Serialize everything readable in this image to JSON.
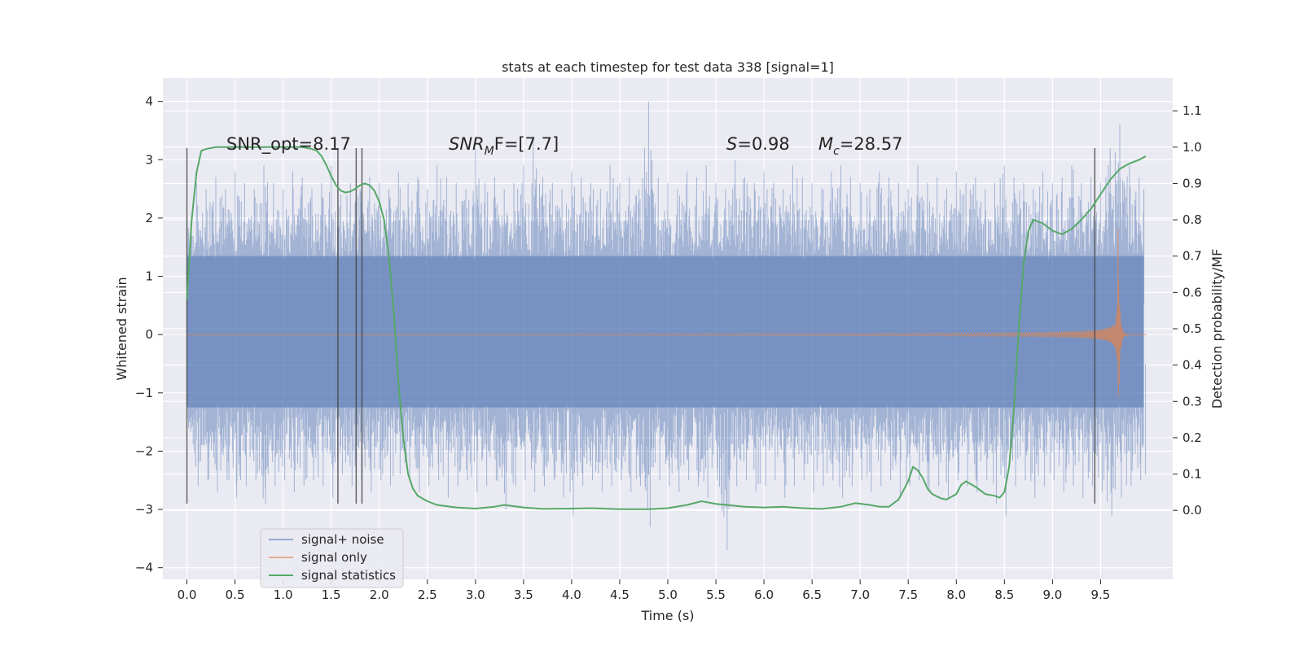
{
  "chart_data": {
    "type": "line",
    "title": "stats at each timestep for test data 338 [signal=1]",
    "xlabel": "Time (s)",
    "ylabel_left": "Whitened strain",
    "ylabel_right": "Detection probability/MF",
    "xlim": [
      -0.25,
      10.25
    ],
    "ylim_left": [
      -4.2,
      4.4
    ],
    "ylim_right": [
      -0.19,
      1.19
    ],
    "xticks": [
      "0.0",
      "0.5",
      "1.0",
      "1.5",
      "2.0",
      "2.5",
      "3.0",
      "3.5",
      "4.0",
      "4.5",
      "5.0",
      "5.5",
      "6.0",
      "6.5",
      "7.0",
      "7.5",
      "8.0",
      "8.5",
      "9.0",
      "9.5"
    ],
    "yticks_left": [
      "4",
      "3",
      "2",
      "1",
      "0",
      "−1",
      "−2",
      "−3",
      "−4"
    ],
    "yticks_right": [
      "1.1",
      "1.0",
      "0.9",
      "0.8",
      "0.7",
      "0.6",
      "0.5",
      "0.4",
      "0.3",
      "0.2",
      "0.1",
      "0.0"
    ],
    "grid": true,
    "legend_position": "lower-left",
    "annotations": {
      "snr_opt": "SNR_opt=8.17",
      "snr_mf_base": "SNR",
      "snr_mf_sub": "M",
      "snr_mf_rest": "F=[7.7]",
      "s_sym": "S",
      "s_val": "=0.98",
      "mc_sym": "M",
      "mc_sub": "c",
      "mc_val": "=28.57"
    },
    "vertical_markers": [
      0.0,
      1.57,
      1.76,
      1.82,
      9.44
    ],
    "series": [
      {
        "name": "signal+ noise",
        "axis": "left",
        "color": "#4c72b0",
        "description_band": "noise envelope roughly ±2.5 with spikes",
        "x": [
          0.0,
          0.1,
          0.2,
          0.3,
          0.4,
          0.5,
          0.6,
          0.7,
          0.8,
          0.9,
          1.0,
          1.1,
          1.2,
          1.3,
          1.4,
          1.5,
          1.6,
          1.7,
          1.8,
          1.9,
          2.0,
          2.1,
          2.2,
          2.3,
          2.4,
          2.5,
          2.6,
          2.7,
          2.8,
          2.9,
          3.0,
          3.1,
          3.2,
          3.3,
          3.4,
          3.5,
          3.6,
          3.7,
          3.8,
          3.9,
          4.0,
          4.1,
          4.2,
          4.3,
          4.4,
          4.5,
          4.6,
          4.7,
          4.8,
          4.9,
          5.0,
          5.1,
          5.2,
          5.3,
          5.4,
          5.5,
          5.6,
          5.7,
          5.8,
          5.9,
          6.0,
          6.1,
          6.2,
          6.3,
          6.4,
          6.5,
          6.6,
          6.7,
          6.8,
          6.9,
          7.0,
          7.1,
          7.2,
          7.3,
          7.4,
          7.5,
          7.6,
          7.7,
          7.8,
          7.9,
          8.0,
          8.1,
          8.2,
          8.3,
          8.4,
          8.5,
          8.6,
          8.7,
          8.8,
          8.9,
          9.0,
          9.1,
          9.2,
          9.3,
          9.4,
          9.5,
          9.6,
          9.7,
          9.8,
          9.9,
          9.95
        ],
        "upper": [
          2.0,
          2.6,
          2.5,
          2.7,
          2.5,
          2.8,
          2.6,
          2.5,
          2.9,
          2.6,
          2.5,
          2.8,
          2.7,
          2.5,
          2.6,
          2.9,
          2.4,
          2.6,
          2.5,
          2.7,
          2.6,
          2.5,
          2.8,
          2.6,
          2.7,
          2.5,
          2.9,
          2.7,
          2.6,
          2.5,
          3.2,
          2.6,
          2.7,
          2.5,
          2.6,
          2.9,
          3.4,
          2.7,
          2.6,
          2.5,
          2.8,
          2.7,
          2.6,
          2.5,
          2.9,
          2.6,
          2.7,
          2.5,
          4.0,
          2.7,
          2.6,
          2.5,
          2.8,
          2.7,
          2.9,
          2.6,
          2.5,
          3.0,
          2.7,
          2.6,
          2.8,
          2.6,
          2.5,
          2.9,
          2.7,
          2.6,
          2.5,
          2.8,
          2.9,
          2.7,
          2.6,
          2.5,
          2.8,
          2.7,
          2.6,
          2.5,
          2.9,
          2.6,
          2.7,
          2.5,
          2.8,
          2.6,
          2.7,
          2.5,
          2.6,
          2.9,
          2.7,
          2.6,
          2.5,
          2.8,
          2.6,
          2.7,
          2.9,
          2.6,
          2.7,
          2.6,
          3.2,
          3.6,
          2.9,
          2.7,
          2.5
        ],
        "lower": [
          -1.6,
          -2.6,
          -2.5,
          -2.7,
          -2.5,
          -2.8,
          -2.6,
          -2.5,
          -2.9,
          -2.6,
          -2.5,
          -2.7,
          -2.6,
          -2.5,
          -2.6,
          -2.8,
          -2.4,
          -2.6,
          -2.5,
          -2.7,
          -2.5,
          -2.6,
          -2.4,
          -2.5,
          -2.7,
          -2.6,
          -2.5,
          -2.8,
          -2.6,
          -2.5,
          -2.7,
          -2.6,
          -2.5,
          -3.0,
          -2.6,
          -2.5,
          -2.7,
          -2.6,
          -2.5,
          -2.8,
          -3.1,
          -2.6,
          -2.5,
          -2.7,
          -2.6,
          -2.5,
          -2.7,
          -2.6,
          -3.3,
          -2.5,
          -2.6,
          -2.7,
          -2.5,
          -2.6,
          -2.8,
          -2.5,
          -3.7,
          -2.6,
          -2.5,
          -2.7,
          -2.6,
          -2.5,
          -2.8,
          -2.6,
          -2.5,
          -2.7,
          -2.6,
          -2.5,
          -2.8,
          -2.6,
          -2.5,
          -2.7,
          -2.6,
          -2.5,
          -2.8,
          -2.6,
          -2.5,
          -2.7,
          -2.6,
          -2.8,
          -2.5,
          -2.6,
          -2.7,
          -2.5,
          -2.9,
          -3.1,
          -2.6,
          -2.5,
          -2.8,
          -2.6,
          -2.5,
          -2.7,
          -2.6,
          -2.8,
          -2.6,
          -2.7,
          -3.1,
          -2.8,
          -2.6,
          -2.5,
          -2.4
        ]
      },
      {
        "name": "signal only",
        "axis": "left",
        "color": "#dd8452",
        "description_shape": "inspiral chirp, amplitude rising toward merger near t≈9.68 s",
        "merger_time": 9.68,
        "peak_amplitude": 1.8
      },
      {
        "name": "signal statistics",
        "axis": "right",
        "color": "#55a868",
        "x": [
          0.0,
          0.05,
          0.1,
          0.15,
          0.2,
          0.3,
          0.5,
          0.8,
          1.0,
          1.2,
          1.3,
          1.35,
          1.4,
          1.45,
          1.5,
          1.55,
          1.6,
          1.65,
          1.7,
          1.75,
          1.8,
          1.85,
          1.9,
          1.95,
          2.0,
          2.05,
          2.1,
          2.15,
          2.2,
          2.25,
          2.3,
          2.35,
          2.4,
          2.5,
          2.6,
          2.8,
          3.0,
          3.2,
          3.3,
          3.5,
          3.7,
          4.0,
          4.2,
          4.5,
          4.8,
          5.0,
          5.2,
          5.35,
          5.5,
          5.8,
          6.0,
          6.2,
          6.4,
          6.6,
          6.8,
          6.95,
          7.1,
          7.2,
          7.3,
          7.4,
          7.5,
          7.55,
          7.6,
          7.65,
          7.7,
          7.75,
          7.8,
          7.85,
          7.9,
          8.0,
          8.05,
          8.1,
          8.2,
          8.3,
          8.4,
          8.45,
          8.5,
          8.55,
          8.6,
          8.65,
          8.7,
          8.75,
          8.8,
          8.9,
          9.0,
          9.1,
          9.2,
          9.3,
          9.4,
          9.5,
          9.6,
          9.7,
          9.8,
          9.9,
          9.97
        ],
        "values": [
          0.58,
          0.8,
          0.93,
          0.99,
          0.995,
          1.0,
          1.0,
          1.0,
          1.0,
          1.0,
          0.995,
          0.99,
          0.975,
          0.95,
          0.92,
          0.895,
          0.88,
          0.875,
          0.878,
          0.885,
          0.895,
          0.9,
          0.895,
          0.88,
          0.85,
          0.8,
          0.7,
          0.55,
          0.35,
          0.2,
          0.1,
          0.06,
          0.04,
          0.025,
          0.015,
          0.008,
          0.005,
          0.01,
          0.015,
          0.008,
          0.004,
          0.005,
          0.006,
          0.003,
          0.003,
          0.006,
          0.015,
          0.025,
          0.018,
          0.01,
          0.008,
          0.01,
          0.006,
          0.004,
          0.01,
          0.02,
          0.015,
          0.01,
          0.01,
          0.03,
          0.08,
          0.12,
          0.11,
          0.09,
          0.06,
          0.045,
          0.038,
          0.032,
          0.03,
          0.045,
          0.07,
          0.08,
          0.065,
          0.045,
          0.04,
          0.035,
          0.05,
          0.12,
          0.28,
          0.5,
          0.68,
          0.77,
          0.8,
          0.79,
          0.77,
          0.76,
          0.775,
          0.8,
          0.83,
          0.87,
          0.91,
          0.94,
          0.955,
          0.965,
          0.975
        ]
      }
    ]
  }
}
